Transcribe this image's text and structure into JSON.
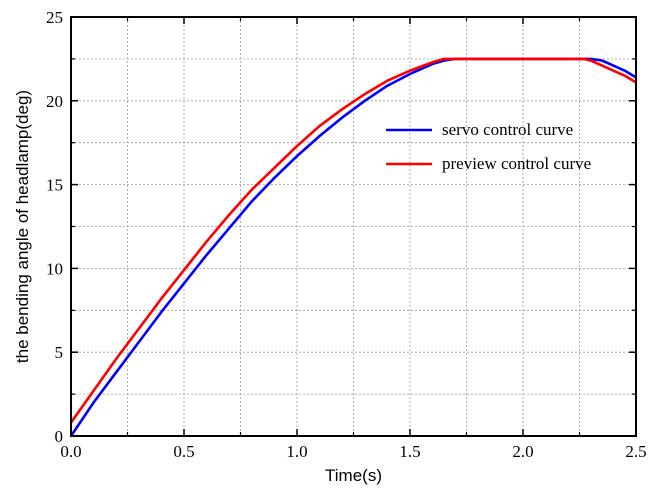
{
  "chart_data": {
    "type": "line",
    "title": "",
    "xlabel": "Time(s)",
    "ylabel": "the bending angle of headlamp(deg)",
    "xlim": [
      0,
      2.5
    ],
    "ylim": [
      0,
      25
    ],
    "xticks": [
      "0.0",
      "0.5",
      "1.0",
      "1.5",
      "2.0",
      "2.5"
    ],
    "yticks": [
      "0",
      "5",
      "10",
      "15",
      "20",
      "25"
    ],
    "grid": true,
    "grid_style": "dotted",
    "legend_position": "top-right",
    "series": [
      {
        "name": "servo control curve",
        "color": "#0000ff",
        "x": [
          0.0,
          0.1,
          0.2,
          0.3,
          0.4,
          0.5,
          0.6,
          0.7,
          0.8,
          0.9,
          1.0,
          1.1,
          1.2,
          1.3,
          1.4,
          1.5,
          1.6,
          1.65,
          1.7,
          2.0,
          2.3,
          2.35,
          2.4,
          2.45,
          2.5
        ],
        "y": [
          0.0,
          2.0,
          3.8,
          5.6,
          7.4,
          9.1,
          10.8,
          12.4,
          14.0,
          15.4,
          16.7,
          17.9,
          19.0,
          20.0,
          20.9,
          21.6,
          22.2,
          22.4,
          22.5,
          22.5,
          22.5,
          22.4,
          22.1,
          21.8,
          21.4
        ]
      },
      {
        "name": "preview control curve",
        "color": "#ff0000",
        "x": [
          0.0,
          0.1,
          0.2,
          0.3,
          0.4,
          0.5,
          0.6,
          0.7,
          0.8,
          0.9,
          1.0,
          1.1,
          1.2,
          1.3,
          1.4,
          1.5,
          1.6,
          1.65,
          2.0,
          2.27,
          2.3,
          2.35,
          2.4,
          2.45,
          2.5
        ],
        "y": [
          0.8,
          2.7,
          4.6,
          6.4,
          8.2,
          9.9,
          11.6,
          13.2,
          14.7,
          16.0,
          17.3,
          18.5,
          19.5,
          20.4,
          21.2,
          21.8,
          22.3,
          22.5,
          22.5,
          22.5,
          22.4,
          22.1,
          21.8,
          21.5,
          21.1
        ]
      }
    ]
  }
}
